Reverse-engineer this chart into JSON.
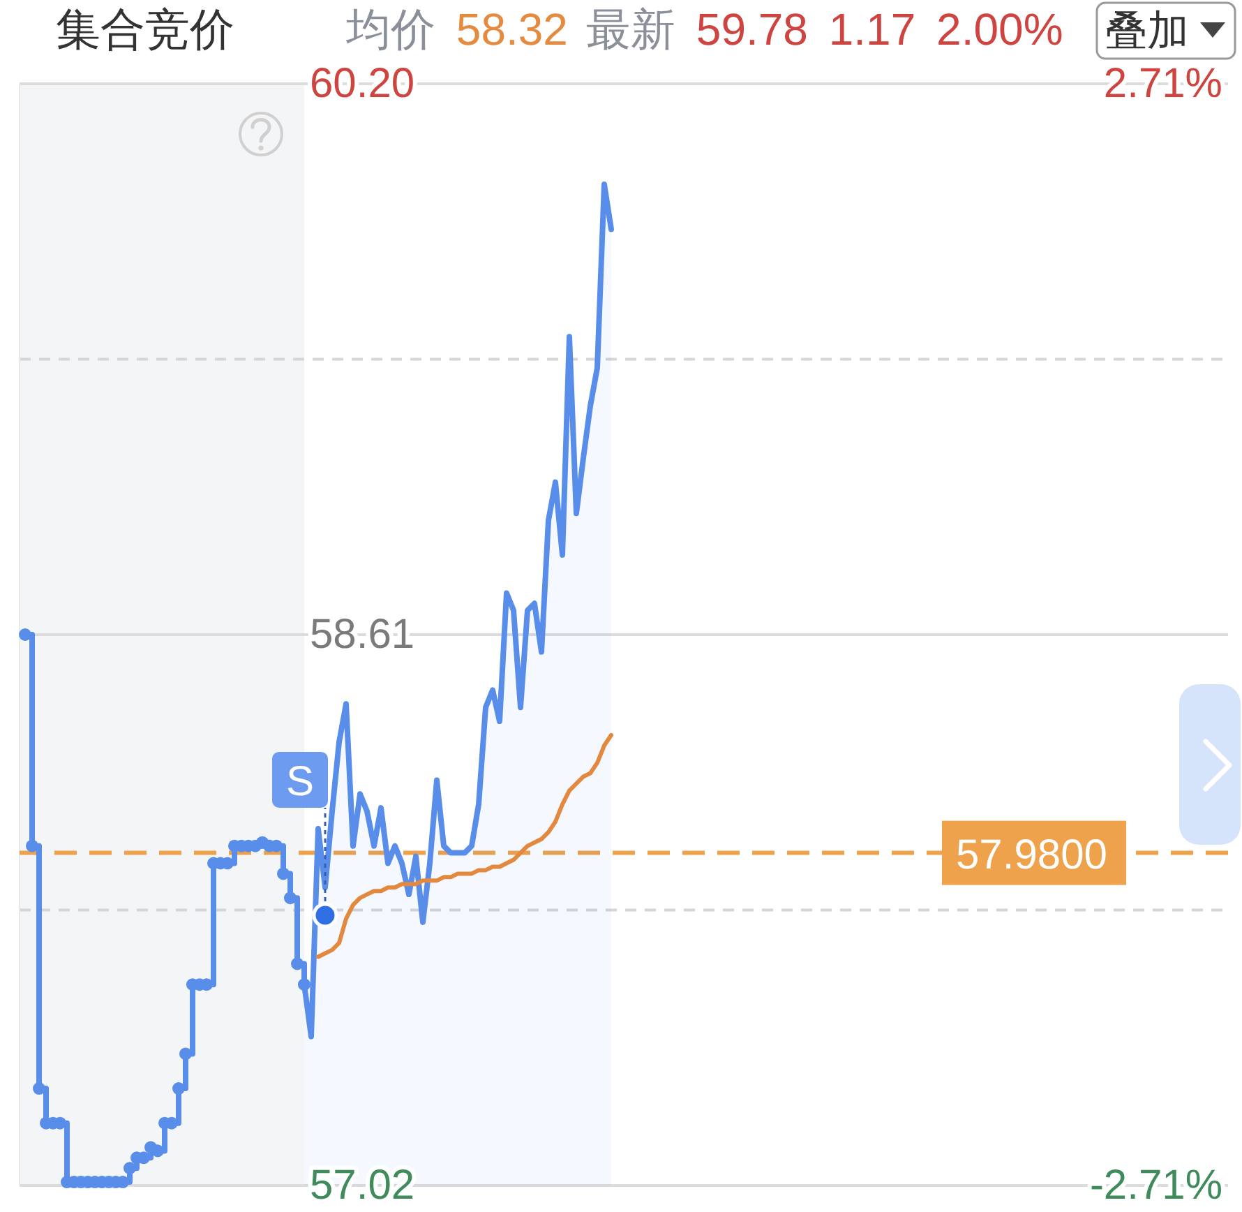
{
  "chart_data": {
    "type": "line",
    "title": "集合竞价",
    "annotations": [
      "均价 58.32",
      "最新 59.78 1.17 2.00%",
      "叠加",
      "S"
    ],
    "categories": [
      null,
      null,
      null,
      null,
      null,
      null,
      null,
      null,
      null,
      null,
      null,
      null,
      null,
      null,
      null,
      null,
      null,
      null,
      null,
      null,
      null,
      null,
      null,
      null,
      null,
      null,
      null,
      null,
      null,
      null,
      null,
      null,
      null,
      null,
      null,
      null,
      null,
      null,
      null,
      null,
      null,
      null,
      null,
      null,
      null,
      null,
      null,
      null,
      null,
      null,
      null,
      null,
      null,
      null,
      null,
      null,
      null,
      null,
      null,
      null,
      null,
      null,
      null,
      null,
      null,
      null,
      null,
      null,
      null,
      null,
      null,
      null,
      null,
      null,
      null,
      null,
      null,
      null,
      null,
      null,
      null,
      null,
      null,
      null,
      null,
      null,
      null,
      null,
      null,
      null,
      null,
      null,
      null,
      null,
      null,
      null,
      null,
      null,
      null,
      null,
      null,
      null,
      null,
      null,
      null,
      null,
      null,
      null,
      null,
      null,
      null,
      null,
      null,
      null,
      null,
      null,
      null,
      null,
      null,
      null,
      null,
      null,
      null,
      null,
      null,
      null,
      null,
      null,
      null,
      null,
      null,
      null,
      null,
      null,
      null,
      null,
      null,
      null,
      null,
      null,
      null,
      null,
      null,
      null,
      null,
      null,
      null,
      null,
      null,
      null,
      null,
      null,
      null,
      null,
      null,
      null,
      null,
      null,
      null,
      null,
      null,
      null,
      null,
      null,
      null,
      null,
      null,
      null,
      null,
      null,
      null,
      null,
      null
    ],
    "series": [
      {
        "type": "step",
        "color": "#588ee9",
        "marker": "circle",
        "values": [
          58.61,
          58.0,
          57.3,
          57.2,
          57.2,
          57.2,
          57.03,
          57.03,
          57.03,
          57.03,
          57.03,
          57.03,
          57.03,
          57.03,
          57.03,
          57.07,
          57.1,
          57.1,
          57.13,
          57.12,
          57.2,
          57.2,
          57.3,
          57.4,
          57.6,
          57.6,
          57.6,
          57.95,
          57.95,
          57.95,
          58.0,
          58.0,
          58.0,
          58.0,
          58.01,
          58.0,
          58.0,
          57.92,
          57.85,
          57.66,
          57.6,
          null,
          null,
          null,
          null,
          null,
          null,
          null,
          null,
          null,
          null,
          null,
          null,
          null,
          null,
          null,
          null,
          null,
          null,
          null,
          null,
          null,
          null,
          null,
          null,
          null,
          null,
          null,
          null,
          null,
          null,
          null,
          null,
          null,
          null,
          null,
          null,
          null,
          null,
          null,
          null,
          null,
          null,
          null,
          null,
          null,
          null,
          null,
          null,
          null,
          null,
          null,
          null,
          null,
          null,
          null,
          null,
          null,
          null,
          null,
          null,
          null,
          null,
          null,
          null,
          null,
          null,
          null,
          null,
          null,
          null,
          null,
          null,
          null,
          null,
          null,
          null,
          null,
          null,
          null,
          null,
          null,
          null,
          null,
          null,
          null,
          null,
          null,
          null,
          null,
          null,
          null,
          null,
          null,
          null,
          null,
          null,
          null,
          null,
          null,
          null,
          null,
          null,
          null,
          null,
          null,
          null,
          null,
          null,
          null,
          null,
          null,
          null,
          null,
          null,
          null,
          null,
          null,
          null,
          null,
          null,
          null,
          null,
          null,
          null,
          null,
          null,
          null,
          null,
          null,
          null,
          null,
          null
        ]
      },
      {
        "type": "area",
        "color": "#588ee9",
        "values": [
          null,
          null,
          null,
          null,
          null,
          null,
          null,
          null,
          null,
          null,
          null,
          null,
          null,
          null,
          null,
          null,
          null,
          null,
          null,
          null,
          null,
          null,
          null,
          null,
          null,
          null,
          null,
          null,
          null,
          null,
          null,
          null,
          null,
          null,
          null,
          null,
          null,
          null,
          null,
          null,
          57.6,
          57.45,
          58.05,
          57.88,
          58.1,
          58.3,
          58.41,
          58.0,
          58.15,
          58.1,
          58.0,
          58.11,
          57.95,
          58.0,
          57.95,
          57.86,
          57.97,
          57.78,
          57.95,
          58.19,
          58.0,
          57.98,
          57.98,
          57.98,
          58.0,
          58.12,
          58.4,
          58.45,
          58.36,
          58.73,
          58.68,
          58.4,
          58.68,
          58.7,
          58.56,
          58.94,
          59.05,
          58.84,
          59.47,
          58.96,
          59.12,
          59.27,
          59.38,
          59.91,
          59.78,
          null,
          null,
          null,
          null,
          null,
          null,
          null,
          null,
          null,
          null,
          null,
          null,
          null,
          null,
          null,
          null,
          null,
          null,
          null,
          null,
          null,
          null,
          null,
          null,
          null,
          null,
          null,
          null,
          null,
          null,
          null,
          null,
          null,
          null,
          null,
          null,
          null,
          null,
          null,
          null,
          null,
          null,
          null,
          null,
          null,
          null,
          null,
          null,
          null,
          null,
          null,
          null,
          null,
          null,
          null,
          null,
          null,
          null,
          null,
          null,
          null,
          null,
          null,
          null,
          null,
          null,
          null,
          null,
          null,
          null,
          null,
          null,
          null,
          null,
          null,
          null,
          null,
          null,
          null,
          null,
          null,
          null,
          null,
          null,
          null,
          null,
          null,
          null
        ]
      },
      {
        "type": "line",
        "color": "#e3893f",
        "values": [
          null,
          null,
          null,
          null,
          null,
          null,
          null,
          null,
          null,
          null,
          null,
          null,
          null,
          null,
          null,
          null,
          null,
          null,
          null,
          null,
          null,
          null,
          null,
          null,
          null,
          null,
          null,
          null,
          null,
          null,
          null,
          null,
          null,
          null,
          null,
          null,
          null,
          null,
          null,
          null,
          null,
          null,
          57.68,
          57.69,
          57.7,
          57.72,
          57.79,
          57.83,
          57.85,
          57.86,
          57.87,
          57.87,
          57.88,
          57.88,
          57.89,
          57.89,
          57.89,
          57.9,
          57.9,
          57.9,
          57.91,
          57.91,
          57.92,
          57.92,
          57.92,
          57.93,
          57.93,
          57.94,
          57.94,
          57.95,
          57.96,
          57.98,
          58.0,
          58.01,
          58.02,
          58.04,
          58.07,
          58.12,
          58.16,
          58.18,
          58.2,
          58.21,
          58.24,
          58.29,
          58.32,
          null,
          null,
          null,
          null,
          null,
          null,
          null,
          null,
          null,
          null,
          null,
          null,
          null,
          null,
          null,
          null,
          null,
          null,
          null,
          null,
          null,
          null,
          null,
          null,
          null,
          null,
          null,
          null,
          null,
          null,
          null,
          null,
          null,
          null,
          null,
          null,
          null,
          null,
          null,
          null,
          null,
          null,
          null,
          null,
          null,
          null,
          null,
          null,
          null,
          null,
          null,
          null,
          null,
          null,
          null,
          null,
          null,
          null,
          null,
          null,
          null,
          null,
          null,
          null,
          null,
          null,
          null,
          null,
          null,
          null,
          null,
          null,
          null,
          null,
          null,
          null,
          null,
          null,
          null,
          null,
          null,
          null,
          null,
          null,
          null,
          null,
          null,
          null
        ]
      },
      {
        "type": "scatter",
        "color": "#2f6fe3",
        "marker": "circle",
        "values": [
          null,
          null,
          null,
          null,
          null,
          null,
          null,
          null,
          null,
          null,
          null,
          null,
          null,
          null,
          null,
          null,
          null,
          null,
          null,
          null,
          null,
          null,
          null,
          null,
          null,
          null,
          null,
          null,
          null,
          null,
          null,
          null,
          null,
          null,
          null,
          null,
          null,
          null,
          null,
          null,
          null,
          null,
          null,
          57.8,
          null,
          null,
          null,
          null,
          null,
          null,
          null,
          null,
          null,
          null,
          null,
          null,
          null,
          null,
          null,
          null,
          null,
          null,
          null,
          null,
          null,
          null,
          null,
          null,
          null,
          null,
          null,
          null,
          null,
          null,
          null,
          null,
          null,
          null,
          null,
          null,
          null,
          null,
          null,
          null,
          null,
          null,
          null,
          null,
          null,
          null,
          null,
          null,
          null,
          null,
          null,
          null,
          null,
          null,
          null,
          null,
          null,
          null,
          null,
          null,
          null,
          null,
          null,
          null,
          null,
          null,
          null,
          null,
          null,
          null,
          null,
          null,
          null,
          null,
          null,
          null,
          null,
          null,
          null,
          null,
          null,
          null,
          null,
          null,
          null,
          null,
          null,
          null,
          null,
          null,
          null,
          null,
          null,
          null,
          null,
          null,
          null,
          null,
          null,
          null,
          null,
          null,
          null,
          null,
          null,
          null,
          null,
          null,
          null,
          null,
          null,
          null,
          null,
          null,
          null,
          null,
          null,
          null,
          null,
          null,
          null,
          null,
          null,
          null,
          null,
          null,
          null,
          null,
          null
        ]
      }
    ],
    "ylim": [
      57.02,
      60.2
    ],
    "yticks": [
      57.02,
      {
        "value": 57.815,
        "label": null
      },
      58.61,
      {
        "value": 59.405,
        "label": null
      },
      {
        "value": 60.2,
        "label": "60.20"
      }
    ],
    "y2lim": [
      -2.71,
      2.71
    ],
    "y2ticks": [
      {
        "value": -2.71,
        "label": "-2.71%"
      },
      {
        "value": 2.71,
        "label": "2.71%"
      }
    ],
    "ref_lines": [
      {
        "axis": "y",
        "value": 57.98,
        "label": "57.9800",
        "color": "#eea24b",
        "line_style": "dashed"
      }
    ],
    "grid": "y",
    "tick_labels": "y"
  }
}
